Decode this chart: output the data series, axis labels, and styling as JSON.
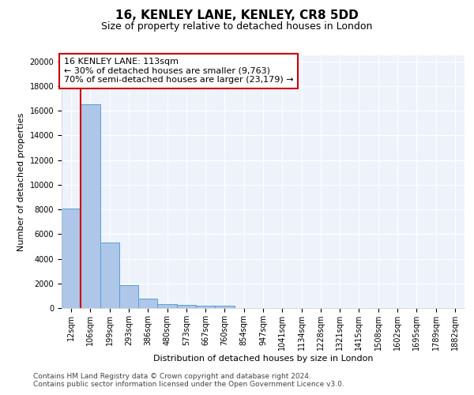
{
  "title": "16, KENLEY LANE, KENLEY, CR8 5DD",
  "subtitle": "Size of property relative to detached houses in London",
  "xlabel": "Distribution of detached houses by size in London",
  "ylabel": "Number of detached properties",
  "categories": [
    "12sqm",
    "106sqm",
    "199sqm",
    "293sqm",
    "386sqm",
    "480sqm",
    "573sqm",
    "667sqm",
    "760sqm",
    "854sqm",
    "947sqm",
    "1041sqm",
    "1134sqm",
    "1228sqm",
    "1321sqm",
    "1415sqm",
    "1508sqm",
    "1602sqm",
    "1695sqm",
    "1789sqm",
    "1882sqm"
  ],
  "values": [
    8100,
    16500,
    5300,
    1850,
    750,
    320,
    250,
    210,
    170,
    0,
    0,
    0,
    0,
    0,
    0,
    0,
    0,
    0,
    0,
    0,
    0
  ],
  "bar_color": "#aec6e8",
  "bar_edge_color": "#5a9fd4",
  "vline_color": "#cc0000",
  "vline_position": 0.5,
  "annotation_text": "16 KENLEY LANE: 113sqm\n← 30% of detached houses are smaller (9,763)\n70% of semi-detached houses are larger (23,179) →",
  "annotation_box_color": "#ffffff",
  "annotation_box_edge_color": "#cc0000",
  "ylim": [
    0,
    20500
  ],
  "yticks": [
    0,
    2000,
    4000,
    6000,
    8000,
    10000,
    12000,
    14000,
    16000,
    18000,
    20000
  ],
  "bg_color": "#eef2fb",
  "grid_color": "#ffffff",
  "footer1": "Contains HM Land Registry data © Crown copyright and database right 2024.",
  "footer2": "Contains public sector information licensed under the Open Government Licence v3.0.",
  "title_fontsize": 11,
  "subtitle_fontsize": 9,
  "label_fontsize": 8,
  "tick_fontsize": 7,
  "annot_fontsize": 8,
  "footer_fontsize": 6.5
}
